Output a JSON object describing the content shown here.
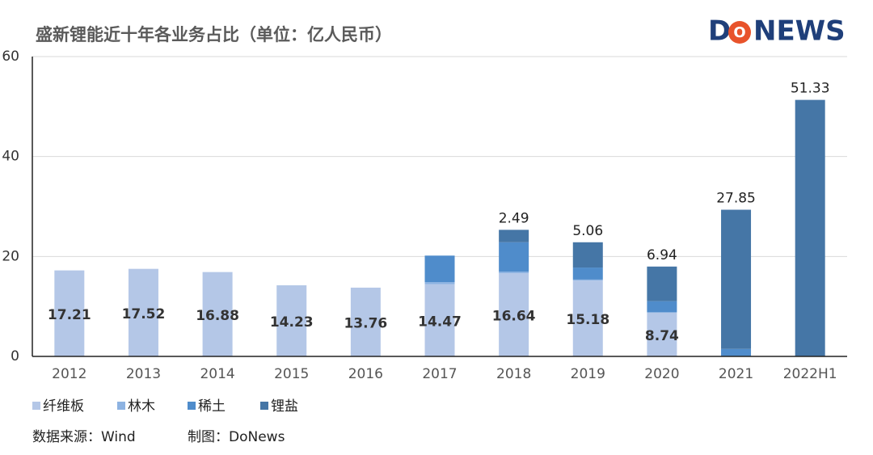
{
  "chart_data": {
    "type": "stacked-bar",
    "title": "盛新锂能近十年各业务占比（单位：亿人民币）",
    "logo": [
      "D",
      "O",
      "NEWS"
    ],
    "categories": [
      "2012",
      "2013",
      "2014",
      "2015",
      "2016",
      "2017",
      "2018",
      "2019",
      "2020",
      "2021",
      "2022H1"
    ],
    "series": [
      {
        "name": "纤维板",
        "color": "#b4c7e7",
        "label": "inside",
        "values": [
          17.21,
          17.52,
          16.88,
          14.23,
          13.76,
          14.47,
          16.64,
          15.18,
          8.74,
          null,
          null
        ]
      },
      {
        "name": "林木",
        "color": "#8db3e2",
        "values": [
          null,
          null,
          null,
          null,
          null,
          0.4,
          0.3,
          0.2,
          0.1,
          null,
          null
        ]
      },
      {
        "name": "稀土",
        "color": "#4f8ccb",
        "values": [
          null,
          null,
          null,
          null,
          null,
          5.3,
          5.9,
          2.4,
          2.2,
          1.5,
          null
        ]
      },
      {
        "name": "锂盐",
        "color": "#4576a6",
        "label": "top",
        "values": [
          null,
          null,
          null,
          null,
          null,
          null,
          2.49,
          5.06,
          6.94,
          27.85,
          51.33
        ]
      }
    ],
    "ylim": [
      0,
      60
    ],
    "yticks": [
      0,
      20,
      40,
      60
    ],
    "grid": true,
    "footer": [
      "数据来源：Wind",
      "制图：DoNews"
    ]
  }
}
